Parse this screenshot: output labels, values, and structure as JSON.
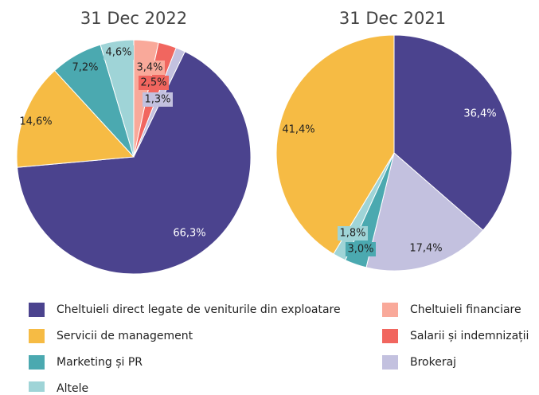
{
  "chart_data": [
    {
      "type": "pie",
      "title": "31 Dec 2022",
      "categories": [
        "Cheltuieli financiare",
        "Salarii și indemnizații",
        "Brokeraj",
        "Cheltuieli direct legate de veniturile din exploatare",
        "Servicii de management",
        "Marketing și PR",
        "Altele"
      ],
      "values": [
        3.4,
        2.5,
        1.3,
        66.3,
        14.6,
        7.2,
        4.6
      ],
      "value_labels": [
        "3,4%",
        "2,5%",
        "1,3%",
        "66,3%",
        "14,6%",
        "7,2%",
        "4,6%"
      ],
      "colors": [
        "#f9a99a",
        "#f1665f",
        "#c3c1df",
        "#4b438e",
        "#f6bb44",
        "#4ba9b0",
        "#9fd4d7"
      ]
    },
    {
      "type": "pie",
      "title": "31 Dec 2021",
      "categories": [
        "Cheltuieli direct legate de veniturile din exploatare",
        "Brokeraj",
        "Marketing și PR",
        "Altele",
        "Servicii de management"
      ],
      "values": [
        36.4,
        17.4,
        3.0,
        1.8,
        41.4
      ],
      "value_labels": [
        "36,4%",
        "17,4%",
        "3,0%",
        "1,8%",
        "41,4%"
      ],
      "colors": [
        "#4b438e",
        "#c3c1df",
        "#4ba9b0",
        "#9fd4d7",
        "#f6bb44"
      ]
    }
  ]
}
